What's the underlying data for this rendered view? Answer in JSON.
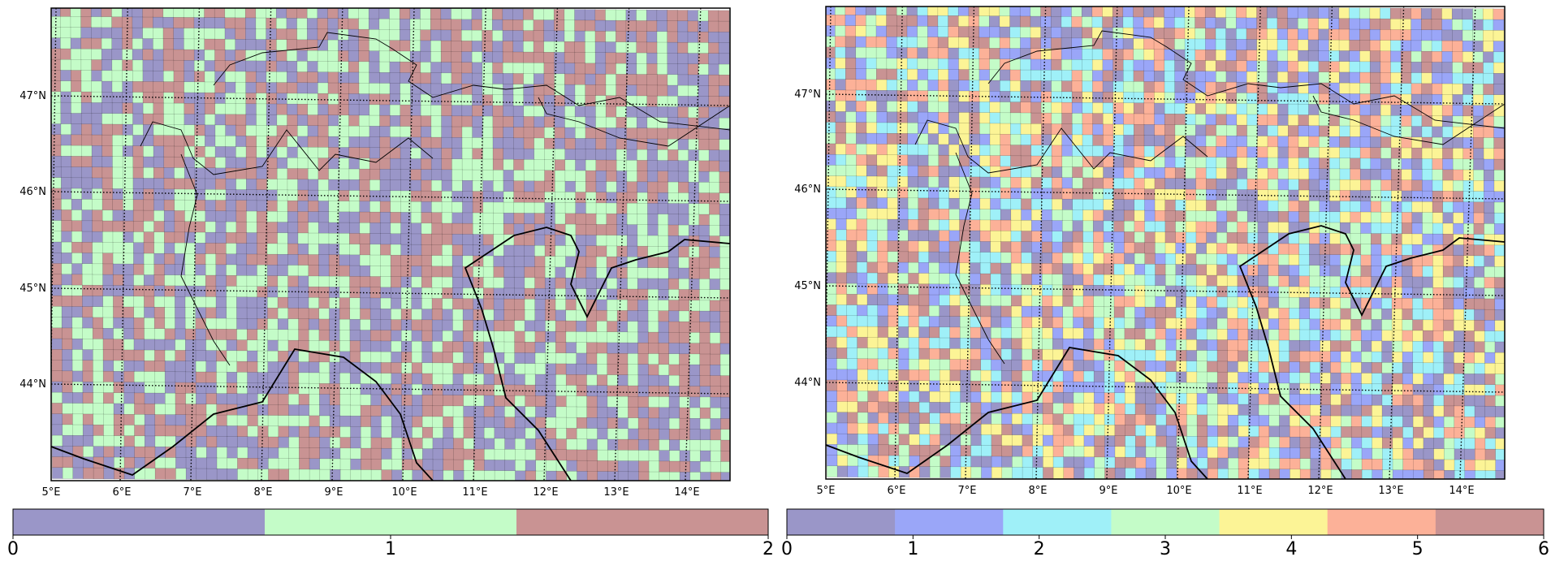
{
  "maps": [
    {
      "id": "left",
      "lat_ticks": [
        "47°N",
        "46°N",
        "45°N",
        "44°N"
      ],
      "lon_ticks": [
        "5°E",
        "6°E",
        "7°E",
        "8°E",
        "9°E",
        "10°E",
        "11°E",
        "12°E",
        "13°E",
        "14°E"
      ],
      "n_classes": 3,
      "palette": [
        "#9a96c8",
        "#c4fcc8",
        "#c99393"
      ],
      "colorbar_ticks": [
        "0",
        "1",
        "2"
      ],
      "seed": 7
    },
    {
      "id": "right",
      "lat_ticks": [
        "47°N",
        "46°N",
        "45°N",
        "44°N"
      ],
      "lon_ticks": [
        "5°E",
        "6°E",
        "7°E",
        "8°E",
        "9°E",
        "10°E",
        "11°E",
        "12°E",
        "13°E",
        "14°E"
      ],
      "n_classes": 7,
      "palette": [
        "#9a96c8",
        "#9aa6f8",
        "#9ff0f8",
        "#c4fcc8",
        "#fcf496",
        "#fcb198",
        "#c99393"
      ],
      "colorbar_ticks": [
        "0",
        "1",
        "2",
        "3",
        "4",
        "5",
        "6"
      ],
      "seed": 13
    }
  ]
}
